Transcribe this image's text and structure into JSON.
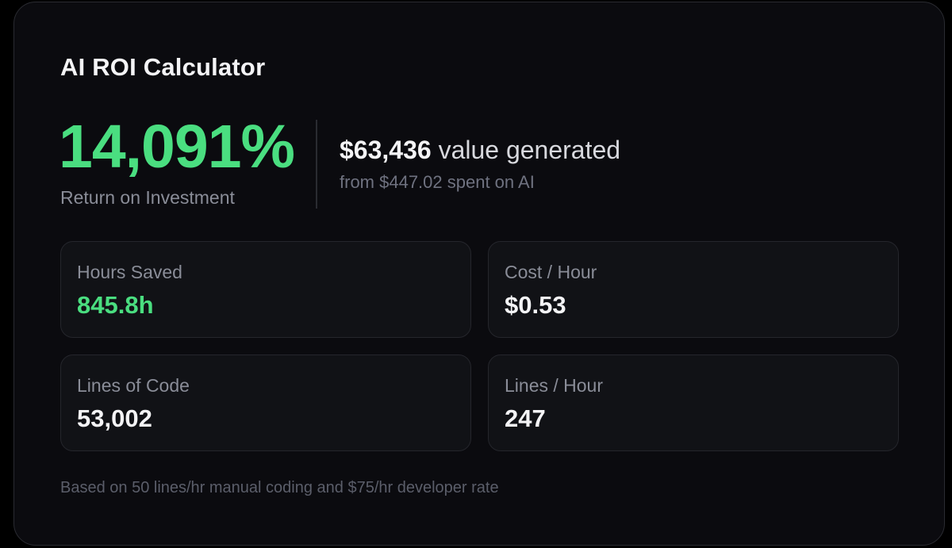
{
  "calculator": {
    "title": "AI ROI Calculator",
    "roi": {
      "value": "14,091%",
      "label": "Return on Investment"
    },
    "value_generated": {
      "amount": "$63,436",
      "suffix": " value generated",
      "spent_text": "from $447.02 spent on AI"
    },
    "stats": [
      {
        "label": "Hours Saved",
        "value": "845.8h"
      },
      {
        "label": "Cost / Hour",
        "value": "$0.53"
      },
      {
        "label": "Lines of Code",
        "value": "53,002"
      },
      {
        "label": "Lines / Hour",
        "value": "247"
      }
    ],
    "footnote": "Based on 50 lines/hr manual coding and $75/hr developer rate"
  },
  "colors": {
    "accent_green": "#4ade80",
    "background": "#0b0b0f",
    "card_border": "#2a2b31",
    "stat_background": "#111216"
  }
}
